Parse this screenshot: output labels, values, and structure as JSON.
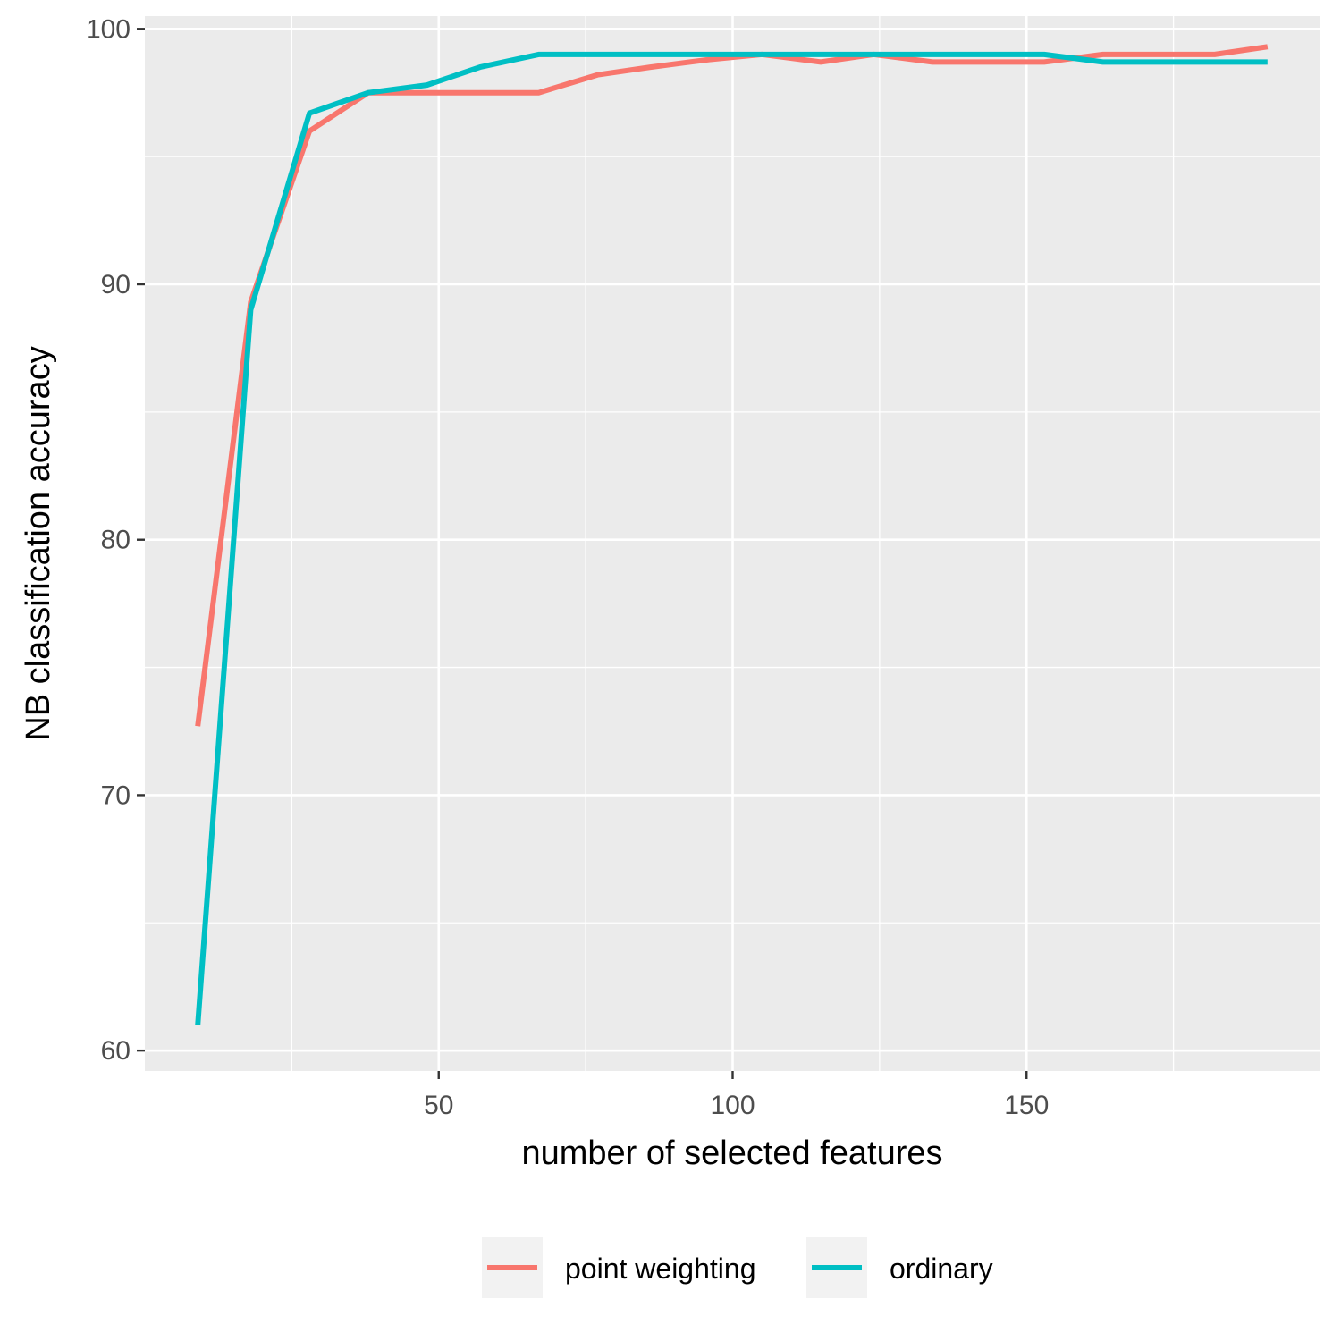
{
  "chart_data": {
    "type": "line",
    "title": "",
    "xlabel": "number of selected features",
    "ylabel": "NB classification accuracy",
    "xlim": [
      0,
      200
    ],
    "ylim": [
      59.2,
      100.5
    ],
    "x_ticks": [
      50,
      100,
      150
    ],
    "y_ticks": [
      60,
      70,
      80,
      90,
      100
    ],
    "grid": true,
    "legend_position": "bottom",
    "series": [
      {
        "name": "point weighting",
        "color": "#F8766D",
        "x": [
          9,
          18,
          28,
          38,
          48,
          57,
          67,
          77,
          86,
          96,
          105,
          115,
          124,
          134,
          143,
          153,
          163,
          172,
          182,
          191
        ],
        "y": [
          72.7,
          89.3,
          96.0,
          97.5,
          97.5,
          97.5,
          97.5,
          98.2,
          98.5,
          98.8,
          99.0,
          98.7,
          99.0,
          98.7,
          98.7,
          98.7,
          99.0,
          99.0,
          99.0,
          99.3
        ]
      },
      {
        "name": "ordinary",
        "color": "#00BFC4",
        "x": [
          9,
          18,
          28,
          38,
          48,
          57,
          67,
          77,
          86,
          96,
          105,
          115,
          124,
          134,
          143,
          153,
          163,
          172,
          182,
          191
        ],
        "y": [
          61.0,
          89.0,
          96.7,
          97.5,
          97.8,
          98.5,
          99.0,
          99.0,
          99.0,
          99.0,
          99.0,
          99.0,
          99.0,
          99.0,
          99.0,
          99.0,
          98.7,
          98.7,
          98.7,
          98.7
        ]
      }
    ]
  }
}
